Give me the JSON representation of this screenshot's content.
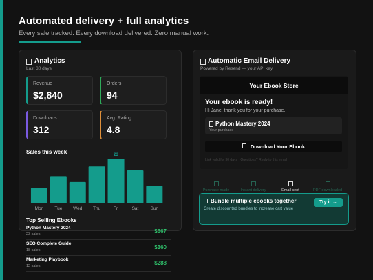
{
  "header": {
    "title": "Automated delivery + full analytics",
    "subtitle": "Every sale tracked. Every download delivered. Zero manual work."
  },
  "analytics": {
    "title": "Analytics",
    "period": "Last 30 days",
    "stats": [
      {
        "label": "Revenue",
        "value": "$2,840"
      },
      {
        "label": "Orders",
        "value": "94"
      },
      {
        "label": "Downloads",
        "value": "312"
      },
      {
        "label": "Avg. Rating",
        "value": "4.8"
      }
    ]
  },
  "chart_data": {
    "type": "bar",
    "title": "Sales this week",
    "categories": [
      "Mon",
      "Tue",
      "Wed",
      "Thu",
      "Fri",
      "Sat",
      "Sun"
    ],
    "values": [
      8,
      14,
      11,
      19,
      23,
      17,
      9
    ],
    "color": "#149c8c"
  },
  "top_selling": {
    "title": "Top Selling Ebooks",
    "items": [
      {
        "name": "Python Mastery 2024",
        "sales": "23 sales",
        "revenue": "$667"
      },
      {
        "name": "SEO Complete Guide",
        "sales": "18 sales",
        "revenue": "$360"
      },
      {
        "name": "Marketing Playbook",
        "sales": "12 sales",
        "revenue": "$288"
      }
    ]
  },
  "email": {
    "title": "Automatic Email Delivery",
    "subtitle": "Powered by Resend — your API key",
    "store": "Your Ebook Store",
    "heading": "Your ebook is ready!",
    "greeting": "Hi Jane, thank you for your purchase.",
    "product": "Python Mastery 2024",
    "product_note": "Your purchase",
    "button": "Download Your Ebook",
    "footer": "Link valid for 30 days · Questions? Reply to this email",
    "steps": [
      "Purchase made",
      "Instant delivery",
      "Email sent",
      "PDF downloaded"
    ]
  },
  "promo": {
    "title": "Bundle multiple ebooks together",
    "text": "Create discounted bundles to increase cart value",
    "button": "Try it →"
  }
}
